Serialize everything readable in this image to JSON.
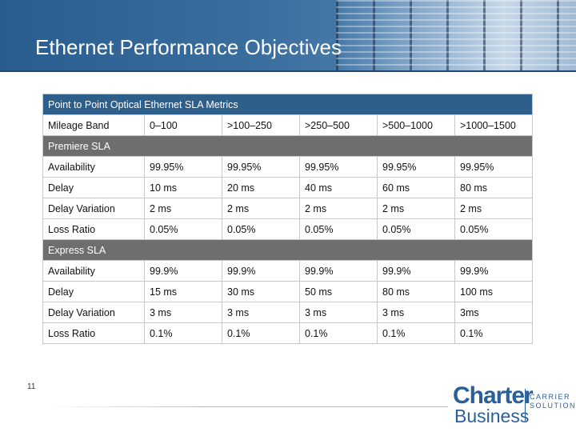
{
  "slide": {
    "title": "Ethernet Performance Objectives",
    "page_number": "11"
  },
  "table": {
    "caption": "Point to Point Optical Ethernet SLA Metrics",
    "header": [
      "Mileage Band",
      "0–100",
      ">100–250",
      ">250–500",
      ">500–1000",
      ">1000–1500"
    ],
    "sections": [
      {
        "name": "Premiere SLA",
        "rows": [
          {
            "metric": "Availability",
            "values": [
              "99.95%",
              "99.95%",
              "99.95%",
              "99.95%",
              "99.95%"
            ]
          },
          {
            "metric": "Delay",
            "values": [
              "10 ms",
              "20 ms",
              "40 ms",
              "60 ms",
              "80 ms"
            ]
          },
          {
            "metric": "Delay Variation",
            "values": [
              "2 ms",
              "2 ms",
              "2 ms",
              "2 ms",
              "2 ms"
            ]
          },
          {
            "metric": "Loss Ratio",
            "values": [
              "0.05%",
              "0.05%",
              "0.05%",
              "0.05%",
              "0.05%"
            ]
          }
        ]
      },
      {
        "name": "Express SLA",
        "rows": [
          {
            "metric": "Availability",
            "values": [
              "99.9%",
              "99.9%",
              "99.9%",
              "99.9%",
              "99.9%"
            ]
          },
          {
            "metric": "Delay",
            "values": [
              "15 ms",
              "30 ms",
              "50 ms",
              "80 ms",
              "100 ms"
            ]
          },
          {
            "metric": "Delay Variation",
            "values": [
              "3 ms",
              "3 ms",
              "3 ms",
              "3 ms",
              "3ms"
            ]
          },
          {
            "metric": "Loss Ratio",
            "values": [
              "0.1%",
              "0.1%",
              "0.1%",
              "0.1%",
              "0.1%"
            ]
          }
        ]
      }
    ]
  },
  "logo": {
    "word1": "Charter",
    "word2": "Business",
    "tag1": "CARRIER",
    "tag2": "SOLUTIONS"
  },
  "colors": {
    "header_blue": "#2e5e8a",
    "section_gray": "#6e6e6e",
    "brand_blue": "#2b5f98"
  }
}
